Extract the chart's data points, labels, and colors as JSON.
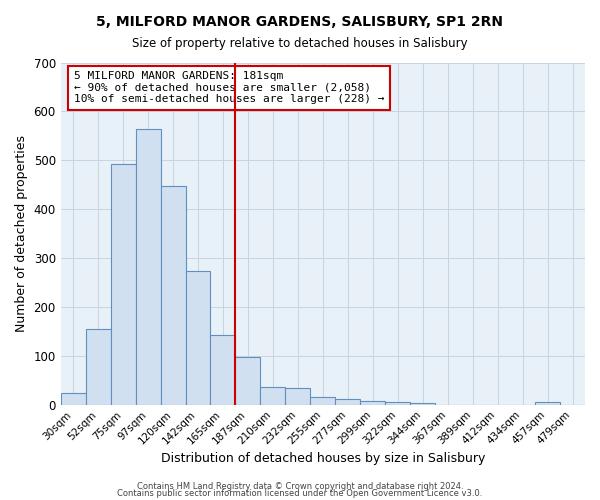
{
  "title": "5, MILFORD MANOR GARDENS, SALISBURY, SP1 2RN",
  "subtitle": "Size of property relative to detached houses in Salisbury",
  "xlabel": "Distribution of detached houses by size in Salisbury",
  "ylabel": "Number of detached properties",
  "bar_labels": [
    "30sqm",
    "52sqm",
    "75sqm",
    "97sqm",
    "120sqm",
    "142sqm",
    "165sqm",
    "187sqm",
    "210sqm",
    "232sqm",
    "255sqm",
    "277sqm",
    "299sqm",
    "322sqm",
    "344sqm",
    "367sqm",
    "389sqm",
    "412sqm",
    "434sqm",
    "457sqm",
    "479sqm"
  ],
  "bar_values": [
    25,
    155,
    492,
    565,
    447,
    273,
    143,
    98,
    36,
    35,
    15,
    12,
    8,
    5,
    3,
    0,
    0,
    0,
    0,
    5,
    0
  ],
  "bar_color": "#d0e0f0",
  "bar_edge_color": "#6090c0",
  "vline_color": "#cc0000",
  "annotation_text": "5 MILFORD MANOR GARDENS: 181sqm\n← 90% of detached houses are smaller (2,058)\n10% of semi-detached houses are larger (228) →",
  "annotation_box_color": "#ffffff",
  "annotation_box_edge_color": "#cc0000",
  "ylim": [
    0,
    700
  ],
  "yticks": [
    0,
    100,
    200,
    300,
    400,
    500,
    600,
    700
  ],
  "footer1": "Contains HM Land Registry data © Crown copyright and database right 2024.",
  "footer2": "Contains public sector information licensed under the Open Government Licence v3.0.",
  "background_color": "#ffffff",
  "plot_bg_color": "#e8f0f8",
  "grid_color": "#c8d4e0"
}
